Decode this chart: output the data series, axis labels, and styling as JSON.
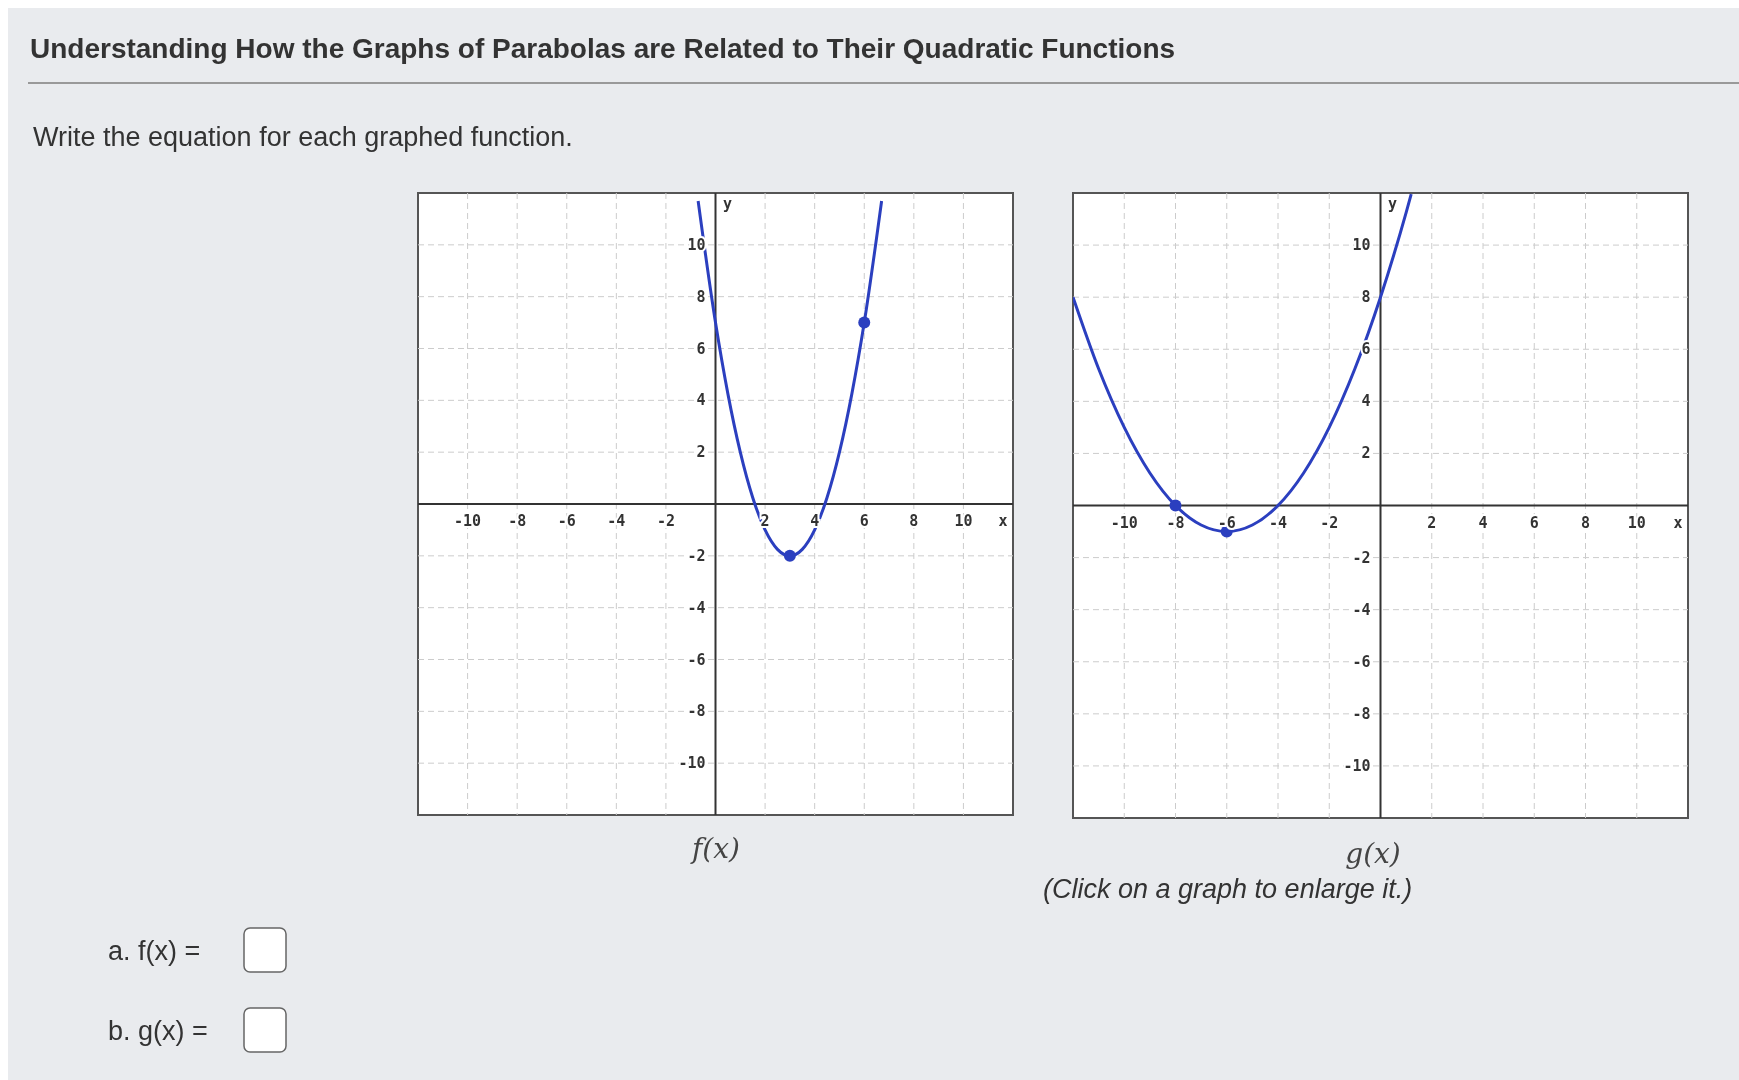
{
  "chart_data": [
    {
      "type": "other",
      "title": "Understanding How the Graphs of Parabolas are Related to Their Quadratic Functions",
      "subtitle": "Write the equation for each graphed function.",
      "annotations": [
        "(Click on a graph to enlarge it.)",
        "a. f(x) =",
        "b. g(x) ="
      ]
    },
    {
      "type": "line",
      "title": "f(x)",
      "xlabel": "x",
      "ylabel": "y",
      "xlim": [
        -12,
        12
      ],
      "ylim": [
        -12,
        12
      ],
      "xticks": [
        -10,
        -8,
        -6,
        -4,
        -2,
        2,
        4,
        6,
        8,
        10
      ],
      "yticks": [
        -10,
        -8,
        -6,
        -4,
        -2,
        2,
        4,
        6,
        8,
        10
      ],
      "grid": true,
      "series": [
        {
          "type": "line",
          "color": "#2b3fbf",
          "x": [
            -0.7,
            0,
            0.5,
            1,
            1.5,
            2,
            2.5,
            3,
            3.5,
            4,
            4.5,
            5,
            5.5,
            6,
            6.7
          ],
          "values": [
            11.69,
            7,
            4.25,
            2,
            0.25,
            -1,
            -1.75,
            -2,
            -1.75,
            -1,
            0.25,
            2,
            4.25,
            7,
            11.69
          ]
        },
        {
          "type": "scatter",
          "color": "#2b3fbf",
          "marker": "circle",
          "x": [
            3,
            6
          ],
          "values": [
            -2,
            7
          ]
        }
      ]
    },
    {
      "type": "line",
      "title": "g(x)",
      "xlabel": "x",
      "ylabel": "y",
      "xlim": [
        -12,
        12
      ],
      "ylim": [
        -12,
        12
      ],
      "xticks": [
        -10,
        -8,
        -6,
        -4,
        -2,
        2,
        4,
        6,
        8,
        10
      ],
      "yticks": [
        -10,
        -8,
        -6,
        -4,
        -2,
        2,
        4,
        6,
        8,
        10
      ],
      "grid": true,
      "series": [
        {
          "type": "line",
          "color": "#2b3fbf",
          "x": [
            -12,
            -11,
            -10,
            -9,
            -8,
            -7,
            -6,
            -5,
            -4,
            -3,
            -2,
            -1,
            0,
            1,
            1.2
          ],
          "values": [
            8,
            5.25,
            3,
            1.25,
            0,
            -0.75,
            -1,
            -0.75,
            0,
            1.25,
            3,
            5.25,
            8,
            11.25,
            11.96
          ]
        },
        {
          "type": "scatter",
          "color": "#2b3fbf",
          "marker": "circle",
          "x": [
            -8,
            -6
          ],
          "values": [
            0,
            -1
          ]
        }
      ]
    }
  ]
}
